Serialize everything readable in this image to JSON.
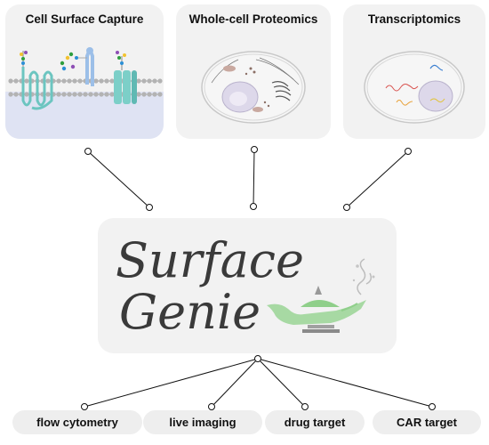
{
  "sources": [
    {
      "label": "Cell Surface Capture"
    },
    {
      "label": "Whole-cell Proteomics"
    },
    {
      "label": "Transcriptomics"
    }
  ],
  "logo": {
    "line1": "Surface",
    "line2": "Genie"
  },
  "applications": [
    {
      "label": "flow cytometry"
    },
    {
      "label": "live imaging"
    },
    {
      "label": "drug target"
    },
    {
      "label": "CAR target"
    }
  ],
  "colors": {
    "panel": "#f2f2f2",
    "membrane_gray": "#b5b5b5",
    "protein_teal": "#6cc5c0",
    "protein_blue": "#9cbfe8",
    "lamp_green": "#a7d9a3",
    "text": "#111111",
    "logo_text": "#3a3a3a"
  }
}
